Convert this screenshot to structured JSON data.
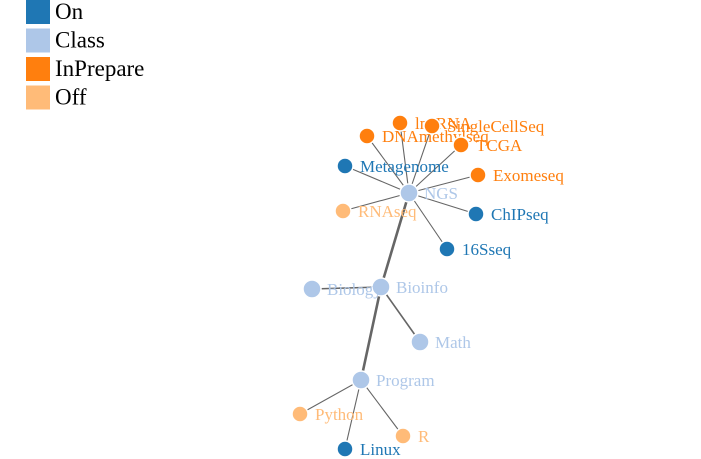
{
  "legend": [
    {
      "key": "on",
      "label": "On",
      "color": "#1f77b4"
    },
    {
      "key": "class",
      "label": "Class",
      "color": "#aec7e8"
    },
    {
      "key": "inprepare",
      "label": "InPrepare",
      "color": "#ff7f0e"
    },
    {
      "key": "off",
      "label": "Off",
      "color": "#ffbb78"
    }
  ],
  "nodes": [
    {
      "id": "ngs",
      "label": "NGS",
      "status": "class"
    },
    {
      "id": "bioinfo",
      "label": "Bioinfo",
      "status": "class"
    },
    {
      "id": "biology",
      "label": "Biology",
      "status": "class"
    },
    {
      "id": "math",
      "label": "Math",
      "status": "class"
    },
    {
      "id": "program",
      "label": "Program",
      "status": "class"
    },
    {
      "id": "python",
      "label": "Python",
      "status": "off"
    },
    {
      "id": "r",
      "label": "R",
      "status": "off"
    },
    {
      "id": "linux",
      "label": "Linux",
      "status": "on"
    },
    {
      "id": "lncrna",
      "label": "lncRNA",
      "status": "inprepare"
    },
    {
      "id": "singlecellseq",
      "label": "SingleCellSeq",
      "status": "inprepare"
    },
    {
      "id": "dnamethylseq",
      "label": "DNAmethylseq",
      "status": "inprepare"
    },
    {
      "id": "tcga",
      "label": "TCGA",
      "status": "inprepare"
    },
    {
      "id": "metagenome",
      "label": "Metagenome",
      "status": "on"
    },
    {
      "id": "exomeseq",
      "label": "Exomeseq",
      "status": "inprepare"
    },
    {
      "id": "rnaseq",
      "label": "RNAseq",
      "status": "off"
    },
    {
      "id": "chipseq",
      "label": "ChIPseq",
      "status": "on"
    },
    {
      "id": "16sseq",
      "label": "16Sseq",
      "status": "on"
    }
  ],
  "links": [
    {
      "source": "program",
      "target": "bioinfo",
      "weight": "thick"
    },
    {
      "source": "bioinfo",
      "target": "ngs",
      "weight": "thick"
    },
    {
      "source": "bioinfo",
      "target": "biology",
      "weight": "medium"
    },
    {
      "source": "bioinfo",
      "target": "math",
      "weight": "medium"
    },
    {
      "source": "program",
      "target": "python",
      "weight": "thin"
    },
    {
      "source": "program",
      "target": "r",
      "weight": "thin"
    },
    {
      "source": "program",
      "target": "linux",
      "weight": "thin"
    },
    {
      "source": "ngs",
      "target": "lncrna",
      "weight": "thin"
    },
    {
      "source": "ngs",
      "target": "singlecellseq",
      "weight": "thin"
    },
    {
      "source": "ngs",
      "target": "dnamethylseq",
      "weight": "thin"
    },
    {
      "source": "ngs",
      "target": "tcga",
      "weight": "thin"
    },
    {
      "source": "ngs",
      "target": "metagenome",
      "weight": "thin"
    },
    {
      "source": "ngs",
      "target": "exomeseq",
      "weight": "thin"
    },
    {
      "source": "ngs",
      "target": "rnaseq",
      "weight": "thin"
    },
    {
      "source": "ngs",
      "target": "chipseq",
      "weight": "thin"
    },
    {
      "source": "ngs",
      "target": "16sseq",
      "weight": "thin"
    }
  ]
}
